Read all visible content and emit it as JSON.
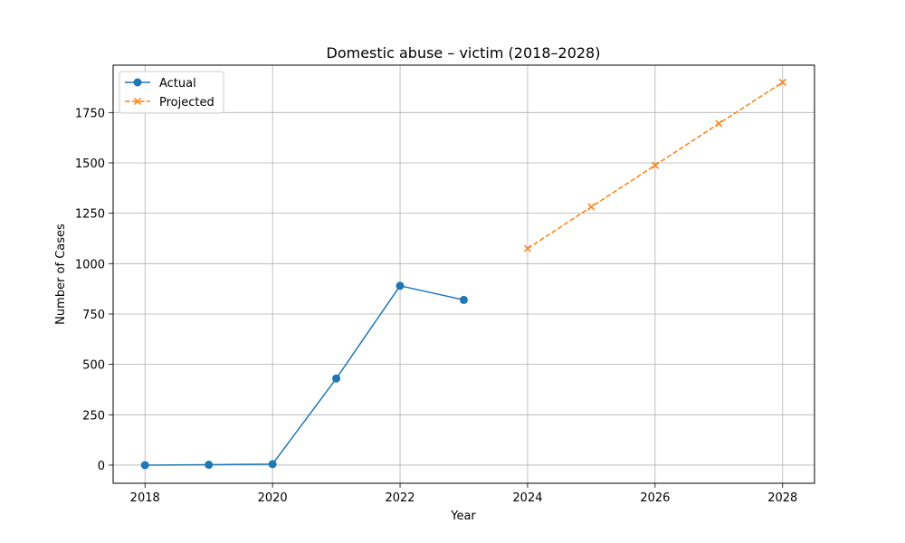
{
  "chart_data": {
    "type": "line",
    "title": "Domestic abuse – victim (2018–2028)",
    "xlabel": "Year",
    "ylabel": "Number of Cases",
    "xlim": [
      2017.5,
      2028.5
    ],
    "ylim": [
      -90,
      1985
    ],
    "xticks": [
      2018,
      2020,
      2022,
      2024,
      2026,
      2028
    ],
    "yticks": [
      0,
      250,
      500,
      750,
      1000,
      1250,
      1500,
      1750
    ],
    "grid": true,
    "legend_position": "top-left",
    "series": [
      {
        "name": "Actual",
        "color": "#1f77b4",
        "line_style": "solid",
        "marker": "circle",
        "x": [
          2018,
          2019,
          2020,
          2021,
          2022,
          2023
        ],
        "y": [
          0,
          2,
          5,
          430,
          890,
          820
        ]
      },
      {
        "name": "Projected",
        "color": "#ff7f0e",
        "line_style": "dashed",
        "marker": "x",
        "x": [
          2024,
          2025,
          2026,
          2027,
          2028
        ],
        "y": [
          1075,
          1282,
          1488,
          1695,
          1900
        ]
      }
    ]
  }
}
